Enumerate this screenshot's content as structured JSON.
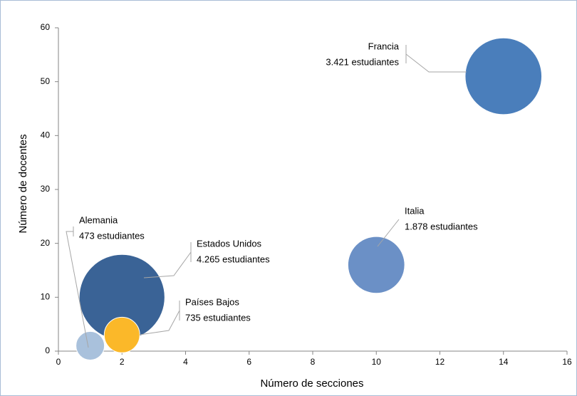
{
  "chart_data": {
    "type": "bubble",
    "x_label": "Número de secciones",
    "y_label": "Número de docentes",
    "xlim": [
      0,
      16
    ],
    "xticks": [
      0,
      2,
      4,
      6,
      8,
      10,
      12,
      14,
      16
    ],
    "ylim": [
      0,
      60
    ],
    "yticks": [
      0,
      10,
      20,
      30,
      40,
      50,
      60
    ],
    "points": [
      {
        "name": "Francia",
        "x": 14,
        "y": 51,
        "size": 3421,
        "label": "3.421 estudiantes",
        "color": "#4a7ebb"
      },
      {
        "name": "Italia",
        "x": 10,
        "y": 16,
        "size": 1878,
        "label": "1.878 estudiantes",
        "color": "#6b90c6"
      },
      {
        "name": "Estados Unidos",
        "x": 2,
        "y": 10,
        "size": 4265,
        "label": "4.265 estudiantes",
        "color": "#3a6396"
      },
      {
        "name": "Países Bajos",
        "x": 2,
        "y": 3,
        "size": 735,
        "label": "735 estudiantes",
        "color": "#fbb829"
      },
      {
        "name": "Alemania",
        "x": 1,
        "y": 1,
        "size": 473,
        "label": "473 estudiantes",
        "color": "#a9c1dc"
      }
    ]
  }
}
